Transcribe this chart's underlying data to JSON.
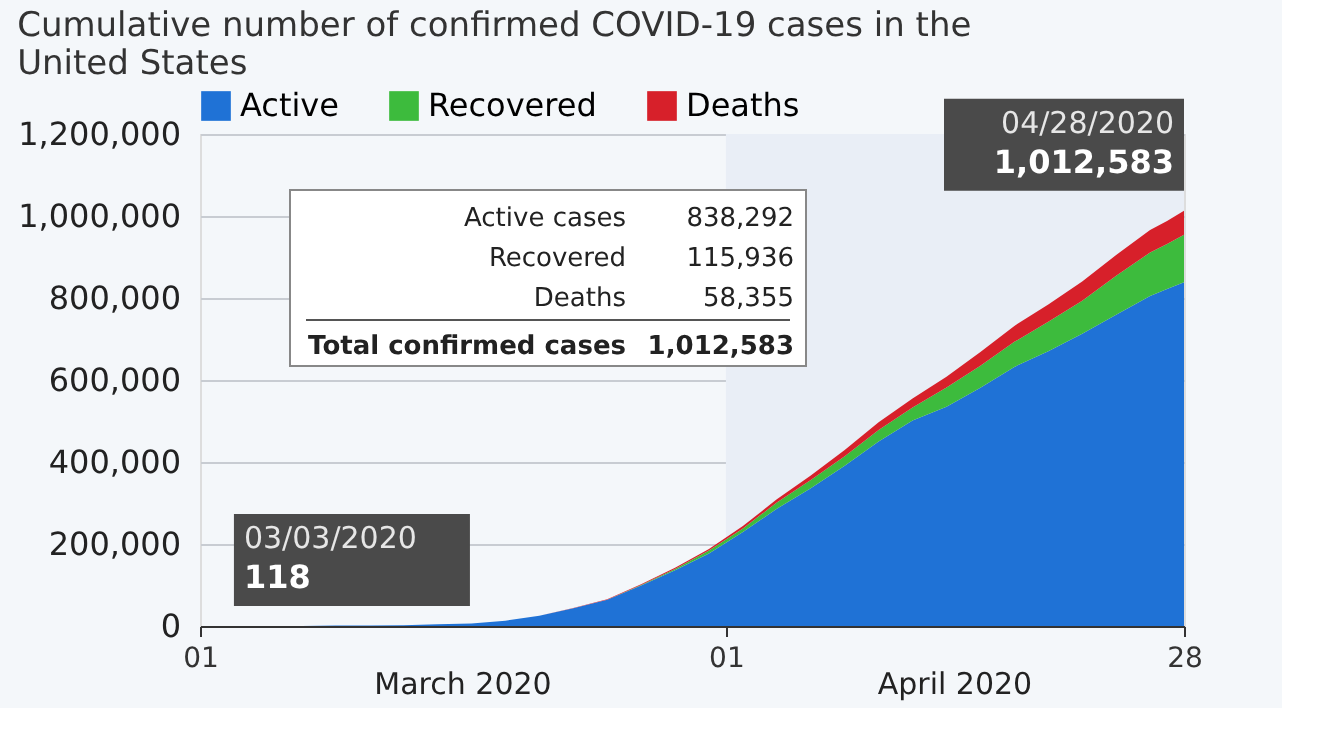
{
  "chart_data": {
    "type": "area",
    "stacked": true,
    "title": "Cumulative number of confirmed COVID-19 cases in the United States",
    "x": [
      "2020-03-01",
      "2020-03-03",
      "2020-03-05",
      "2020-03-07",
      "2020-03-09",
      "2020-03-11",
      "2020-03-13",
      "2020-03-15",
      "2020-03-17",
      "2020-03-19",
      "2020-03-21",
      "2020-03-23",
      "2020-03-25",
      "2020-03-27",
      "2020-03-29",
      "2020-03-31",
      "2020-04-02",
      "2020-04-04",
      "2020-04-06",
      "2020-04-08",
      "2020-04-10",
      "2020-04-12",
      "2020-04-14",
      "2020-04-16",
      "2020-04-18",
      "2020-04-20",
      "2020-04-22",
      "2020-04-24",
      "2020-04-26",
      "2020-04-27",
      "2020-04-28"
    ],
    "series": [
      {
        "name": "Active",
        "color": "#1f72d6",
        "values": [
          0,
          0,
          0,
          0,
          1000,
          1000,
          2000,
          4000,
          6000,
          13000,
          25000,
          43000,
          64000,
          99000,
          136000,
          177000,
          229000,
          286000,
          336000,
          391000,
          450000,
          501000,
          535000,
          581000,
          632000,
          670000,
          713000,
          759000,
          805000,
          822000,
          838292
        ]
      },
      {
        "name": "Recovered",
        "color": "#3dbb3d",
        "values": [
          0,
          0,
          0,
          0,
          0,
          0,
          0,
          0,
          0,
          0,
          0,
          0,
          0,
          1000,
          3000,
          7000,
          9000,
          15000,
          20000,
          23000,
          28000,
          32000,
          47000,
          54000,
          61000,
          72000,
          80000,
          95000,
          106000,
          110000,
          115936
        ]
      },
      {
        "name": "Deaths",
        "color": "#d7202a",
        "values": [
          0,
          0,
          0,
          0,
          0,
          0,
          0,
          0,
          0,
          0,
          0,
          1000,
          1000,
          2000,
          3000,
          4000,
          6000,
          8000,
          11000,
          15000,
          19000,
          22000,
          26000,
          33000,
          39000,
          42000,
          47000,
          51000,
          55000,
          56000,
          58355
        ]
      }
    ],
    "xlim": [
      "2020-03-01",
      "2020-04-28"
    ],
    "xticks": [
      {
        "value": "2020-03-01",
        "label": "01"
      },
      {
        "value": "2020-04-01",
        "label": "01"
      },
      {
        "value": "2020-04-28",
        "label": "28"
      }
    ],
    "ylim": [
      0,
      1200000
    ],
    "yticks": [
      {
        "value": 0,
        "label": "0"
      },
      {
        "value": 200000,
        "label": "200,000"
      },
      {
        "value": 400000,
        "label": "400,000"
      },
      {
        "value": 600000,
        "label": "600,000"
      },
      {
        "value": 800000,
        "label": "800,000"
      },
      {
        "value": 1000000,
        "label": "1,000,000"
      },
      {
        "value": 1200000,
        "label": "1,200,000"
      }
    ],
    "grid": "y",
    "legend": "top",
    "bands": [
      {
        "axis": "x",
        "from": "2020-04-01",
        "to": "2020-04-28",
        "color": "#e9eef6"
      }
    ],
    "annotations": [
      {
        "text": "03/03/2020 118",
        "x": "2020-03-03",
        "y": 118
      },
      {
        "text": "04/28/2020 1,012,583",
        "x": "2020-04-28",
        "y": 1012583
      },
      "Active cases 838,292",
      "Recovered 115,936",
      "Deaths 58,355",
      "Total confirmed cases 1,012,583",
      "March 2020",
      "April 2020"
    ]
  }
}
